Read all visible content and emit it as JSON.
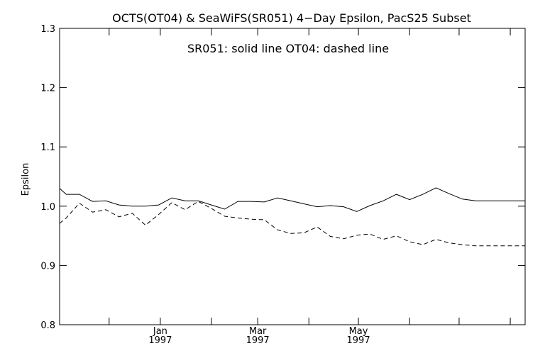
{
  "chart_data": {
    "type": "line",
    "title": "OCTS(OT04) & SeaWiFS(SR051) 4−Day Epsilon, PacS25 Subset",
    "annotation": "SR051: solid line    OT04: dashed line",
    "xlabel": "",
    "ylabel": "Epsilon",
    "ylim": [
      0.8,
      1.3
    ],
    "yticks": [
      "0.8",
      "0.9",
      "1.0",
      "1.1",
      "1.2",
      "1.3"
    ],
    "xlim": [
      "1996-11-01",
      "1997-08-10"
    ],
    "xticks": [
      {
        "date": "1996-12-01",
        "label": "",
        "label2": ""
      },
      {
        "date": "1997-01-01",
        "label": "Jan",
        "label2": "1997"
      },
      {
        "date": "1997-02-01",
        "label": "",
        "label2": ""
      },
      {
        "date": "1997-03-01",
        "label": "Mar",
        "label2": "1997"
      },
      {
        "date": "1997-04-01",
        "label": "",
        "label2": ""
      },
      {
        "date": "1997-05-01",
        "label": "May",
        "label2": "1997"
      },
      {
        "date": "1997-06-01",
        "label": "",
        "label2": ""
      },
      {
        "date": "1997-07-01",
        "label": "",
        "label2": ""
      },
      {
        "date": "1997-08-01",
        "label": "",
        "label2": ""
      }
    ],
    "grid": false,
    "series": [
      {
        "name": "SR051",
        "style": "solid",
        "x": [
          "1996-11-01",
          "1996-11-05",
          "1996-11-13",
          "1996-11-21",
          "1996-11-29",
          "1996-12-07",
          "1996-12-15",
          "1996-12-23",
          "1996-12-31",
          "1997-01-08",
          "1997-01-16",
          "1997-01-24",
          "1997-02-01",
          "1997-02-09",
          "1997-02-17",
          "1997-02-25",
          "1997-03-05",
          "1997-03-13",
          "1997-03-21",
          "1997-03-29",
          "1997-04-06",
          "1997-04-14",
          "1997-04-22",
          "1997-04-30",
          "1997-05-08",
          "1997-05-16",
          "1997-05-24",
          "1997-06-01",
          "1997-06-09",
          "1997-06-17",
          "1997-06-25",
          "1997-07-03",
          "1997-07-11",
          "1997-07-19",
          "1997-07-27",
          "1997-08-04",
          "1997-08-10"
        ],
        "values": [
          1.03,
          1.02,
          1.02,
          1.008,
          1.009,
          1.002,
          1.0,
          1.0,
          1.002,
          1.014,
          1.009,
          1.009,
          1.002,
          0.995,
          1.008,
          1.008,
          1.007,
          1.014,
          1.009,
          1.004,
          0.999,
          1.001,
          0.999,
          0.991,
          1.001,
          1.009,
          1.02,
          1.011,
          1.02,
          1.031,
          1.021,
          1.012,
          1.009,
          1.009,
          1.009,
          1.009,
          1.009
        ]
      },
      {
        "name": "OT04",
        "style": "dashed",
        "x": [
          "1996-11-01",
          "1996-11-05",
          "1996-11-13",
          "1996-11-21",
          "1996-11-29",
          "1996-12-07",
          "1996-12-15",
          "1996-12-23",
          "1996-12-31",
          "1997-01-08",
          "1997-01-16",
          "1997-01-24",
          "1997-02-01",
          "1997-02-09",
          "1997-02-17",
          "1997-02-25",
          "1997-03-05",
          "1997-03-13",
          "1997-03-21",
          "1997-03-29",
          "1997-04-06",
          "1997-04-14",
          "1997-04-22",
          "1997-04-30",
          "1997-05-08",
          "1997-05-16",
          "1997-05-24",
          "1997-06-01",
          "1997-06-09",
          "1997-06-17",
          "1997-06-25",
          "1997-07-03",
          "1997-07-11",
          "1997-07-19",
          "1997-07-27",
          "1997-08-04",
          "1997-08-10"
        ],
        "values": [
          0.971,
          0.98,
          1.005,
          0.99,
          0.994,
          0.982,
          0.988,
          0.968,
          0.986,
          1.006,
          0.994,
          1.008,
          0.996,
          0.983,
          0.98,
          0.978,
          0.977,
          0.96,
          0.954,
          0.955,
          0.965,
          0.949,
          0.945,
          0.951,
          0.953,
          0.944,
          0.95,
          0.94,
          0.935,
          0.944,
          0.938,
          0.935,
          0.933,
          0.933,
          0.933,
          0.933,
          0.933
        ]
      }
    ]
  }
}
